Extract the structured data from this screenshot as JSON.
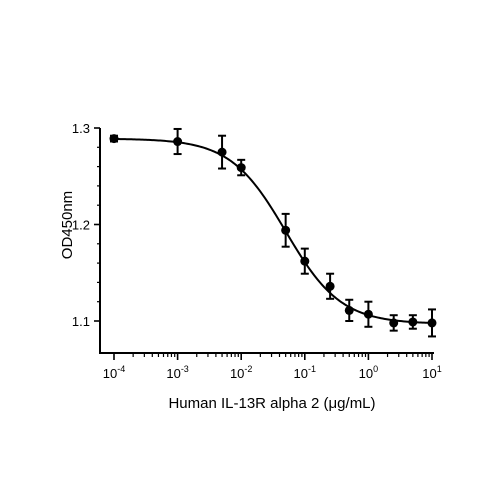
{
  "chart_data": {
    "type": "scatter",
    "xlabel": "Human IL-13R alpha 2 (μg/mL)",
    "ylabel": "OD450nm",
    "x_scale": "log",
    "xlim": [
      0.0001,
      10
    ],
    "ylim": [
      1.07,
      1.3
    ],
    "x_ticks": [
      {
        "value": 0.0001,
        "base": "10",
        "exp": "-4"
      },
      {
        "value": 0.001,
        "base": "10",
        "exp": "-3"
      },
      {
        "value": 0.01,
        "base": "10",
        "exp": "-2"
      },
      {
        "value": 0.1,
        "base": "10",
        "exp": "-1"
      },
      {
        "value": 1,
        "base": "10",
        "exp": "0"
      },
      {
        "value": 10,
        "base": "10",
        "exp": "1"
      }
    ],
    "y_ticks": [
      {
        "value": 1.1,
        "label": "1.1"
      },
      {
        "value": 1.2,
        "label": "1.2"
      },
      {
        "value": 1.3,
        "label": "1.3"
      }
    ],
    "grid": false,
    "legend": false,
    "series": [
      {
        "points": [
          {
            "x": 0.0001,
            "y": 1.289,
            "err": 0.003
          },
          {
            "x": 0.001,
            "y": 1.286,
            "err": 0.013
          },
          {
            "x": 0.005,
            "y": 1.275,
            "err": 0.017
          },
          {
            "x": 0.01,
            "y": 1.259,
            "err": 0.008
          },
          {
            "x": 0.05,
            "y": 1.194,
            "err": 0.017
          },
          {
            "x": 0.1,
            "y": 1.162,
            "err": 0.013
          },
          {
            "x": 0.25,
            "y": 1.136,
            "err": 0.013
          },
          {
            "x": 0.5,
            "y": 1.111,
            "err": 0.011
          },
          {
            "x": 1,
            "y": 1.107,
            "err": 0.013
          },
          {
            "x": 2.5,
            "y": 1.098,
            "err": 0.008
          },
          {
            "x": 5,
            "y": 1.099,
            "err": 0.007
          },
          {
            "x": 10,
            "y": 1.098,
            "err": 0.014
          }
        ],
        "fit": {
          "model": "4PL",
          "top": 1.289,
          "bottom": 1.097,
          "ec50": 0.05,
          "hill": 1.0
        }
      }
    ],
    "colors": {
      "series": "#000000"
    }
  }
}
